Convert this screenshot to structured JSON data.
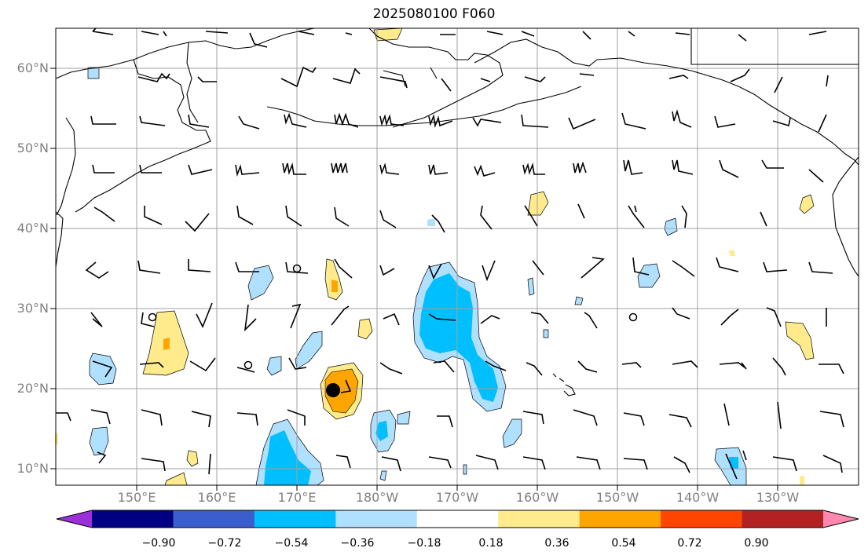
{
  "title": "2025080100 F060",
  "lat_labels": [
    "60°N",
    "50°N",
    "40°N",
    "30°N",
    "20°N",
    "10°N"
  ],
  "lon_labels": [
    "150°E",
    "160°E",
    "170°E",
    "180°W",
    "170°W",
    "160°W",
    "150°W",
    "140°W",
    "130°W"
  ],
  "colorbar": {
    "ticks": [
      "−0.90",
      "−0.72",
      "−0.54",
      "−0.36",
      "−0.18",
      "0.18",
      "0.36",
      "0.54",
      "0.72",
      "0.90"
    ],
    "colors": [
      "#9b30d9",
      "#000080",
      "#3a5fcd",
      "#00bfff",
      "#b0e0ff",
      "#ffffff",
      "#ffeb8c",
      "#ffa500",
      "#ff4500",
      "#b22222",
      "#ff88b0"
    ]
  },
  "colors": {
    "coast": "#000000",
    "grid": "#a0a0a0",
    "frame": "#000000"
  }
}
